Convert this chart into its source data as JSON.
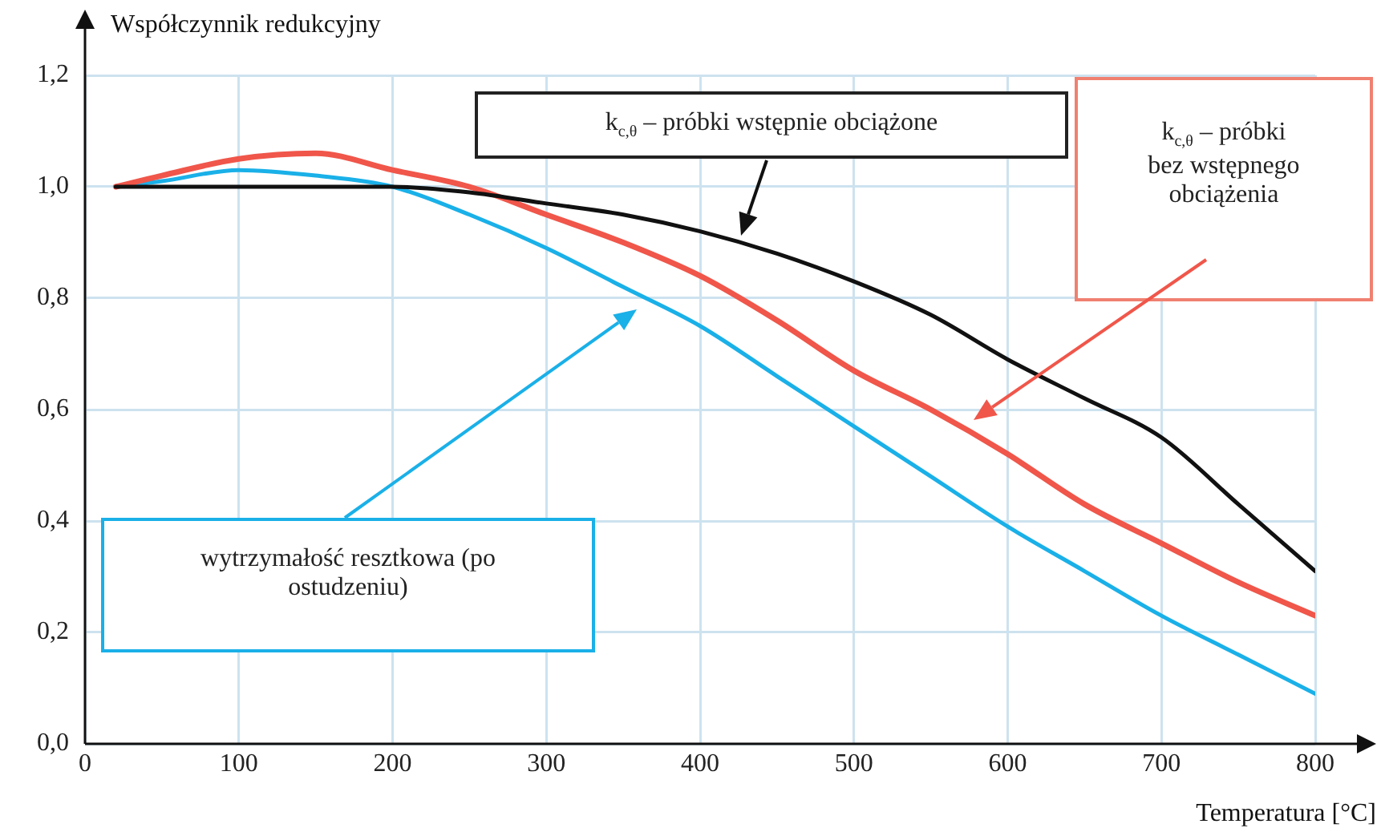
{
  "chart_data": {
    "type": "line",
    "xlabel": "Temperatura [°C]",
    "ylabel": "Współczynnik redukcyjny",
    "xlim": [
      0,
      800
    ],
    "xticks": [
      0,
      100,
      200,
      300,
      400,
      500,
      600,
      700,
      800
    ],
    "ylim": [
      0,
      1.2
    ],
    "yticks": [
      {
        "value": 0,
        "label": "0,0"
      },
      {
        "value": 0.2,
        "label": "0,2"
      },
      {
        "value": 0.4,
        "label": "0,4"
      },
      {
        "value": 0.6,
        "label": "0,6"
      },
      {
        "value": 0.8,
        "label": "0,8"
      },
      {
        "value": 1,
        "label": "1,0"
      },
      {
        "value": 1.2,
        "label": "1,2"
      }
    ],
    "x": [
      20,
      50,
      100,
      150,
      200,
      250,
      300,
      350,
      400,
      450,
      500,
      550,
      600,
      650,
      700,
      750,
      800
    ],
    "series": [
      {
        "color": "#111111",
        "values": [
          1.0,
          1.0,
          1.0,
          1.0,
          1.0,
          0.99,
          0.97,
          0.95,
          0.92,
          0.88,
          0.83,
          0.77,
          0.69,
          0.62,
          0.55,
          0.43,
          0.31
        ]
      },
      {
        "color": "#f0564a",
        "values": [
          1.0,
          1.02,
          1.05,
          1.06,
          1.03,
          1.0,
          0.95,
          0.9,
          0.84,
          0.76,
          0.67,
          0.6,
          0.52,
          0.43,
          0.36,
          0.29,
          0.23
        ]
      },
      {
        "color": "#1ab0e8",
        "values": [
          1.0,
          1.01,
          1.03,
          1.02,
          1.0,
          0.95,
          0.89,
          0.82,
          0.75,
          0.66,
          0.57,
          0.48,
          0.39,
          0.31,
          0.23,
          0.16,
          0.09
        ]
      }
    ],
    "annotations": [
      "k$_{c,θ}$ – próbki wstępnie obciążone",
      "k$_{c,θ}$ – próbki bez wstępnego obciążenia",
      "wytrzymałość resztkowa (po ostudzeniu)"
    ],
    "grid": true,
    "legend": false,
    "marker": "none",
    "line_style": "solid"
  }
}
